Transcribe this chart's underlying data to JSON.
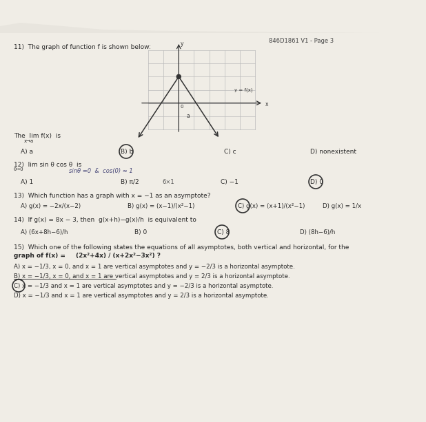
{
  "header_right": "846D1861 V1 - Page 3",
  "bg_color": "#9b9890",
  "paper_color": "#f0ede6",
  "text_color": "#2a2a2a",
  "q11_text": "11)  The graph of function f is shown below:",
  "q12_text": "12)  lim sin θ cos θ  is",
  "q13_text": "13)  Which function has a graph with x = −1 as an asymptote?",
  "q14_text": "14)  If g(x) = 8x − 3, then  g(x+h)−g(x)/h  is equivalent to",
  "q15_text1": "15)  Which one of the following states the equations of all asymptotes, both vertical and horizontal, for the",
  "q15_text2": "graph of f(x) = (2x²+4x) / (x+2x²−3x²) ?",
  "graph_grid_color": "#bbbbbb",
  "graph_line_color": "#333333",
  "circle_color": "#333333"
}
